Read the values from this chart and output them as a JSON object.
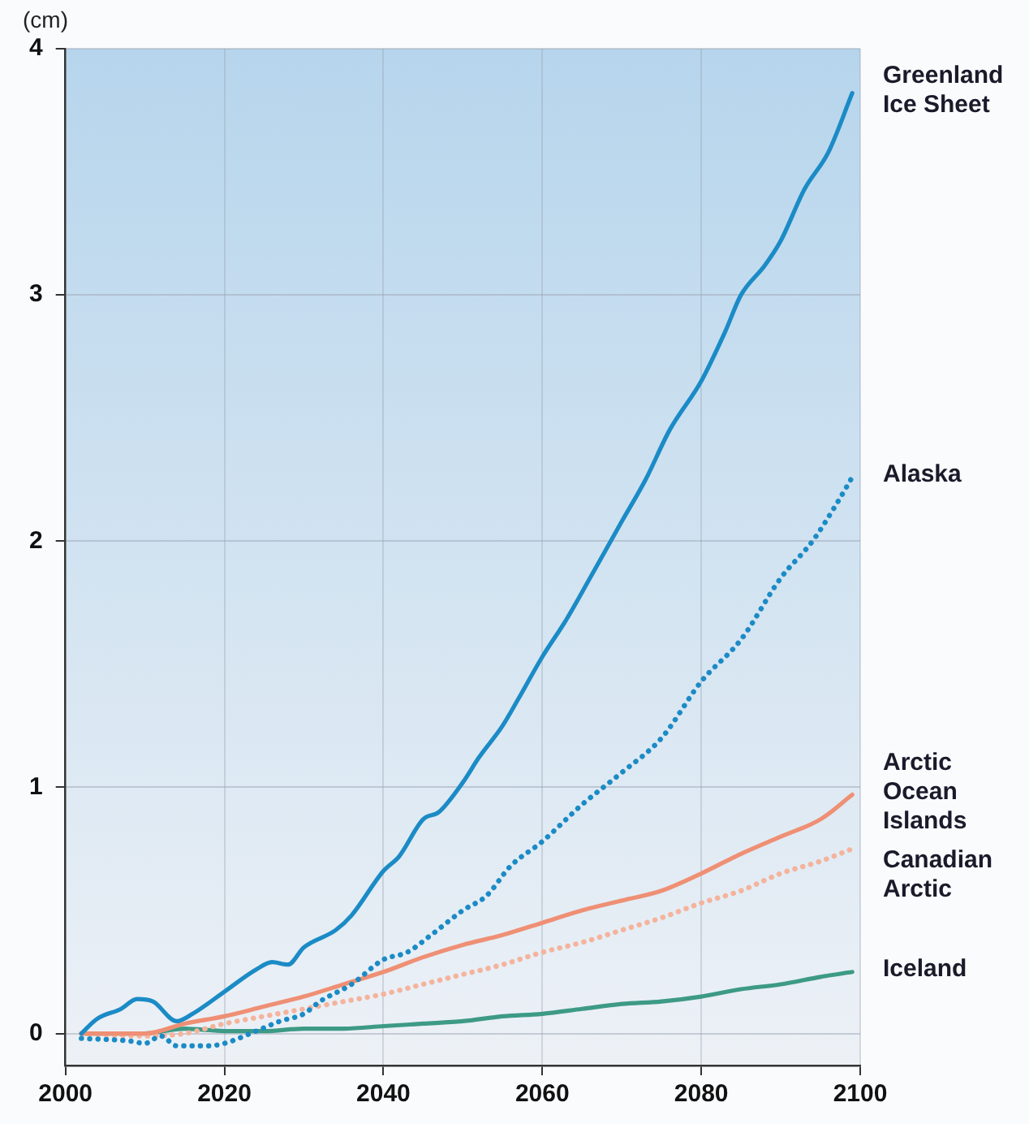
{
  "chart_data": {
    "type": "line",
    "ylabel": "(cm)",
    "xlim": [
      2000,
      2100
    ],
    "xticks": [
      2000,
      2020,
      2040,
      2060,
      2080,
      2100
    ],
    "ylim": [
      -0.13,
      4
    ],
    "yticks": [
      0,
      1,
      2,
      3,
      4
    ],
    "grid": true,
    "legend": false,
    "marker": "none",
    "series": [
      {
        "name": "Greenland Ice Sheet",
        "color": "#1b8bc6",
        "line_style": "solid",
        "x": [
          2002,
          2004,
          2007,
          2009,
          2011,
          2014,
          2016,
          2020,
          2024,
          2026,
          2028,
          2030,
          2034,
          2036,
          2040,
          2042,
          2045,
          2047,
          2050,
          2052,
          2055,
          2057,
          2060,
          2063,
          2066,
          2070,
          2073,
          2076,
          2080,
          2083,
          2085,
          2088,
          2090,
          2093,
          2096,
          2099
        ],
        "values": [
          0,
          0.06,
          0.1,
          0.14,
          0.13,
          0.05,
          0.08,
          0.17,
          0.26,
          0.29,
          0.28,
          0.35,
          0.42,
          0.48,
          0.66,
          0.72,
          0.87,
          0.9,
          1.02,
          1.12,
          1.25,
          1.36,
          1.53,
          1.68,
          1.85,
          2.08,
          2.25,
          2.45,
          2.65,
          2.85,
          3.0,
          3.12,
          3.22,
          3.43,
          3.58,
          3.82
        ]
      },
      {
        "name": "Alaska",
        "color": "#1b8bc6",
        "line_style": "dotted",
        "x": [
          2002,
          2008,
          2010,
          2012,
          2014,
          2018,
          2020,
          2024,
          2027,
          2030,
          2032,
          2036,
          2040,
          2043,
          2046,
          2050,
          2053,
          2056,
          2060,
          2065,
          2070,
          2075,
          2080,
          2085,
          2090,
          2094,
          2097,
          2099
        ],
        "values": [
          -0.02,
          -0.03,
          -0.04,
          -0.01,
          -0.05,
          -0.05,
          -0.04,
          0.01,
          0.05,
          0.08,
          0.13,
          0.2,
          0.3,
          0.33,
          0.4,
          0.5,
          0.56,
          0.68,
          0.78,
          0.93,
          1.06,
          1.2,
          1.43,
          1.6,
          1.85,
          2.0,
          2.15,
          2.26
        ]
      },
      {
        "name": "Arctic Ocean Islands",
        "color": "#ef8f74",
        "line_style": "solid",
        "x": [
          2002,
          2010,
          2015,
          2020,
          2025,
          2030,
          2035,
          2040,
          2045,
          2050,
          2055,
          2060,
          2065,
          2070,
          2075,
          2080,
          2085,
          2090,
          2095,
          2099
        ],
        "values": [
          0,
          0,
          0.04,
          0.07,
          0.11,
          0.15,
          0.2,
          0.25,
          0.31,
          0.36,
          0.4,
          0.45,
          0.5,
          0.54,
          0.58,
          0.65,
          0.73,
          0.8,
          0.87,
          0.97
        ]
      },
      {
        "name": "Canadian Arctic",
        "color": "#f5b39c",
        "line_style": "dotted",
        "x": [
          2002,
          2010,
          2015,
          2020,
          2025,
          2030,
          2035,
          2040,
          2045,
          2050,
          2055,
          2060,
          2065,
          2070,
          2075,
          2080,
          2085,
          2090,
          2095,
          2099
        ],
        "values": [
          0,
          -0.01,
          0,
          0.04,
          0.07,
          0.1,
          0.13,
          0.16,
          0.2,
          0.24,
          0.28,
          0.33,
          0.37,
          0.42,
          0.47,
          0.53,
          0.58,
          0.65,
          0.7,
          0.75
        ]
      },
      {
        "name": "Iceland",
        "color": "#3d9a85",
        "line_style": "solid",
        "x": [
          2002,
          2010,
          2015,
          2020,
          2025,
          2030,
          2035,
          2040,
          2045,
          2050,
          2055,
          2060,
          2065,
          2070,
          2075,
          2080,
          2085,
          2090,
          2095,
          2099
        ],
        "values": [
          0,
          0,
          0.02,
          0.01,
          0.01,
          0.02,
          0.02,
          0.03,
          0.04,
          0.05,
          0.07,
          0.08,
          0.1,
          0.12,
          0.13,
          0.15,
          0.18,
          0.2,
          0.23,
          0.25
        ]
      }
    ]
  }
}
